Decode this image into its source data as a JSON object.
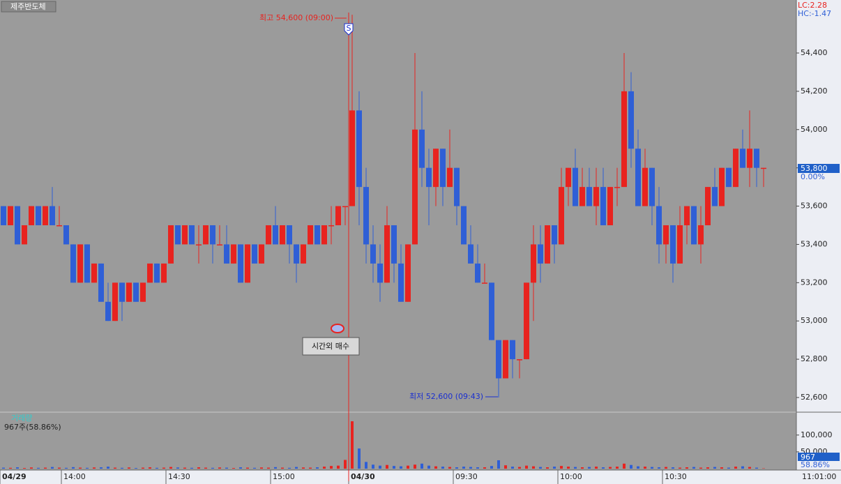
{
  "chart_data": [
    {
      "type": "candlestick",
      "title": "제주반도체",
      "up_color": "#e8231f",
      "down_color": "#2f5fd6",
      "ylim": [
        52527,
        54677
      ],
      "yticks": [
        {
          "value": 52600,
          "label": "52,600"
        },
        {
          "value": 52800,
          "label": "52,800"
        },
        {
          "value": 53000,
          "label": "53,000"
        },
        {
          "value": 53200,
          "label": "53,200"
        },
        {
          "value": 53400,
          "label": "53,400"
        },
        {
          "value": 53600,
          "label": "53,600"
        },
        {
          "value": 53800,
          "label": "53,800"
        },
        {
          "value": 54000,
          "label": "54,000"
        },
        {
          "value": 54200,
          "label": "54,200"
        },
        {
          "value": 54400,
          "label": "54,400"
        }
      ],
      "xticks": [
        {
          "value": 0,
          "label": "04/29"
        },
        {
          "value": 8.8,
          "label": "14:00"
        },
        {
          "value": 23.8,
          "label": "14:30"
        },
        {
          "value": 38.8,
          "label": "15:00"
        },
        {
          "value": 50,
          "label": "04/30"
        },
        {
          "value": 65,
          "label": "09:30"
        },
        {
          "value": 80,
          "label": "10:00"
        },
        {
          "value": 95,
          "label": "10:30"
        }
      ],
      "time_label": "11:01:00",
      "indicator_lc": "LC:2.28",
      "indicator_hc": "HC:-1.47",
      "current_price_label": "53,800",
      "change_label": "0.00%",
      "annotations": {
        "high": "최고 54,600 (09:00)",
        "low": "최저 52,600 (09:43)",
        "marker": "S",
        "tooltip": "시간외 매수"
      },
      "open": [
        53600,
        53500,
        53600,
        53400,
        53500,
        53600,
        53500,
        53600,
        53500,
        53500,
        53400,
        53200,
        53400,
        53200,
        53300,
        53100,
        53000,
        53200,
        53100,
        53200,
        53100,
        53200,
        53300,
        53200,
        53300,
        53500,
        53400,
        53500,
        53400,
        53400,
        53500,
        53400,
        53400,
        53300,
        53400,
        53200,
        53400,
        53300,
        53400,
        53500,
        53400,
        53500,
        53400,
        53300,
        53400,
        53500,
        53400,
        53500,
        53500,
        53600,
        53600,
        54100,
        53700,
        53400,
        53300,
        53200,
        53500,
        53300,
        53100,
        53400,
        54000,
        53800,
        53700,
        53900,
        53700,
        53800,
        53600,
        53400,
        53300,
        53200,
        53200,
        52900,
        52700,
        52900,
        52800,
        52800,
        53200,
        53400,
        53300,
        53500,
        53400,
        53700,
        53800,
        53600,
        53700,
        53600,
        53700,
        53500,
        53700,
        53700,
        54200,
        53900,
        53600,
        53800,
        53600,
        53400,
        53500,
        53300,
        53500,
        53600,
        53400,
        53500,
        53700,
        53600,
        53800,
        53700,
        53900,
        53800,
        53900,
        53800
      ],
      "high": [
        53600,
        53600,
        53600,
        53500,
        53600,
        53600,
        53600,
        53700,
        53600,
        53500,
        53400,
        53400,
        53400,
        53300,
        53300,
        53200,
        53200,
        53200,
        53200,
        53200,
        53200,
        53300,
        53300,
        53300,
        53500,
        53500,
        53500,
        53500,
        53500,
        53500,
        53500,
        53500,
        53500,
        53400,
        53400,
        53400,
        53400,
        53400,
        53500,
        53600,
        53500,
        53500,
        53400,
        53400,
        53500,
        53500,
        53500,
        53600,
        53600,
        53600,
        54600,
        54200,
        53800,
        53500,
        53400,
        53600,
        53500,
        53400,
        53400,
        54400,
        54200,
        53900,
        53900,
        53900,
        54000,
        53800,
        53600,
        53500,
        53400,
        53300,
        53200,
        52900,
        52900,
        52900,
        52800,
        53200,
        53500,
        53500,
        53500,
        53500,
        53800,
        53800,
        53900,
        53800,
        53800,
        53800,
        53800,
        53700,
        53800,
        54400,
        54300,
        54000,
        53900,
        53800,
        53700,
        53500,
        53500,
        53600,
        53600,
        53600,
        53600,
        53700,
        53800,
        53800,
        53800,
        53900,
        54000,
        54100,
        53900,
        53800
      ],
      "low": [
        53500,
        53500,
        53400,
        53400,
        53500,
        53500,
        53500,
        53500,
        53500,
        53400,
        53200,
        53200,
        53200,
        53200,
        53100,
        53000,
        53000,
        53000,
        53100,
        53100,
        53100,
        53200,
        53200,
        53200,
        53300,
        53400,
        53400,
        53400,
        53300,
        53400,
        53300,
        53400,
        53300,
        53300,
        53200,
        53200,
        53300,
        53300,
        53400,
        53400,
        53400,
        53300,
        53200,
        53300,
        53400,
        53400,
        53400,
        53400,
        53500,
        53500,
        53600,
        53500,
        53300,
        53200,
        53100,
        53200,
        53200,
        53100,
        53100,
        53400,
        53700,
        53500,
        53600,
        53600,
        53700,
        53500,
        53400,
        53300,
        53200,
        53200,
        52900,
        52600,
        52700,
        52700,
        52700,
        52800,
        53000,
        53200,
        53300,
        53300,
        53400,
        53600,
        53600,
        53600,
        53600,
        53500,
        53500,
        53500,
        53600,
        53700,
        53800,
        53600,
        53600,
        53500,
        53300,
        53300,
        53200,
        53300,
        53400,
        53400,
        53300,
        53500,
        53600,
        53600,
        53700,
        53700,
        53800,
        53700,
        53700,
        53700
      ],
      "close": [
        53500,
        53600,
        53400,
        53500,
        53600,
        53500,
        53600,
        53500,
        53500,
        53400,
        53200,
        53400,
        53200,
        53300,
        53100,
        53000,
        53200,
        53100,
        53200,
        53100,
        53200,
        53300,
        53200,
        53300,
        53500,
        53400,
        53500,
        53400,
        53400,
        53500,
        53400,
        53400,
        53300,
        53400,
        53200,
        53400,
        53300,
        53400,
        53500,
        53400,
        53500,
        53400,
        53300,
        53400,
        53500,
        53400,
        53500,
        53500,
        53600,
        53600,
        54100,
        53700,
        53400,
        53300,
        53200,
        53500,
        53300,
        53100,
        53400,
        54000,
        53800,
        53700,
        53900,
        53700,
        53800,
        53600,
        53400,
        53300,
        53200,
        53200,
        52900,
        52700,
        52900,
        52800,
        52800,
        53200,
        53400,
        53300,
        53500,
        53400,
        53700,
        53800,
        53600,
        53700,
        53600,
        53700,
        53500,
        53700,
        53700,
        54200,
        53900,
        53600,
        53800,
        53600,
        53400,
        53500,
        53300,
        53500,
        53600,
        53400,
        53500,
        53700,
        53600,
        53800,
        53700,
        53900,
        53800,
        53900,
        53800,
        53800
      ]
    },
    {
      "type": "bar",
      "title": "거래량",
      "subtitle": "967주(58.86%)",
      "ylim": [
        0,
        166000
      ],
      "yticks": [
        {
          "value": 50000,
          "label": "50,000"
        },
        {
          "value": 100000,
          "label": "100,000"
        }
      ],
      "last_label": "967",
      "ratio_label": "58.86%",
      "values": [
        3000,
        2500,
        4000,
        2000,
        3500,
        2500,
        3000,
        5000,
        3000,
        2500,
        4500,
        3000,
        2500,
        3500,
        4000,
        6000,
        3000,
        2500,
        3500,
        2000,
        3000,
        4000,
        2500,
        3000,
        5000,
        3500,
        3000,
        2500,
        4000,
        3000,
        2500,
        3500,
        3000,
        2000,
        4000,
        3000,
        2500,
        3500,
        3000,
        4500,
        3000,
        2500,
        5000,
        3500,
        3000,
        4000,
        6000,
        8000,
        9000,
        26000,
        141000,
        60000,
        20000,
        12000,
        9000,
        11000,
        8000,
        7000,
        9000,
        12000,
        15000,
        9000,
        7000,
        6000,
        5000,
        4000,
        6000,
        5000,
        4000,
        4000,
        8000,
        25000,
        10000,
        6000,
        5000,
        9000,
        7000,
        5000,
        4000,
        6000,
        8000,
        6000,
        5000,
        4000,
        5000,
        6000,
        4000,
        5000,
        6000,
        15000,
        11000,
        7000,
        6000,
        5000,
        4000,
        5000,
        4000,
        3000,
        4000,
        5000,
        3000,
        4000,
        5000,
        4000,
        3000,
        6000,
        7000,
        5000,
        3000,
        967
      ]
    }
  ]
}
